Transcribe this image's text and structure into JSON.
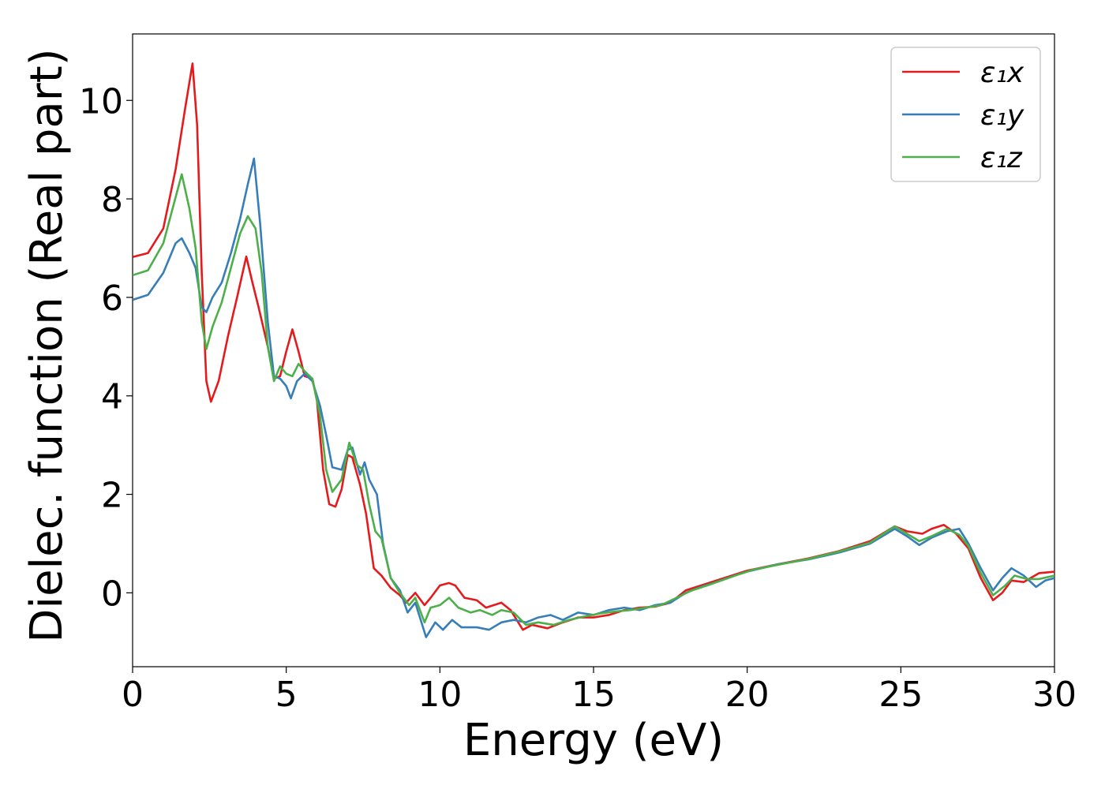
{
  "chart_data": {
    "type": "line",
    "title": "",
    "xlabel": "Energy (eV)",
    "ylabel": "Dielec. function (Real part)",
    "xlim": [
      0,
      30
    ],
    "ylim": [
      -1.5,
      11.35
    ],
    "xticks": [
      0,
      5,
      10,
      15,
      20,
      25,
      30
    ],
    "yticks": [
      0,
      2,
      4,
      6,
      8,
      10
    ],
    "grid": false,
    "legend_position": "top-right",
    "series": [
      {
        "name": "ε₁x",
        "color": "#e41a1c",
        "points": [
          [
            0,
            6.82
          ],
          [
            0.5,
            6.9
          ],
          [
            1.0,
            7.4
          ],
          [
            1.4,
            8.6
          ],
          [
            1.7,
            9.8
          ],
          [
            1.95,
            10.75
          ],
          [
            2.1,
            9.5
          ],
          [
            2.25,
            6.5
          ],
          [
            2.4,
            4.3
          ],
          [
            2.55,
            3.88
          ],
          [
            2.8,
            4.3
          ],
          [
            3.1,
            5.2
          ],
          [
            3.4,
            6.0
          ],
          [
            3.7,
            6.83
          ],
          [
            3.9,
            6.3
          ],
          [
            4.1,
            5.8
          ],
          [
            4.4,
            5.0
          ],
          [
            4.6,
            4.35
          ],
          [
            4.8,
            4.4
          ],
          [
            5.0,
            4.9
          ],
          [
            5.2,
            5.35
          ],
          [
            5.4,
            4.9
          ],
          [
            5.6,
            4.4
          ],
          [
            5.85,
            4.35
          ],
          [
            6.0,
            3.9
          ],
          [
            6.2,
            2.5
          ],
          [
            6.4,
            1.8
          ],
          [
            6.6,
            1.75
          ],
          [
            6.8,
            2.1
          ],
          [
            7.0,
            2.8
          ],
          [
            7.15,
            2.75
          ],
          [
            7.4,
            2.2
          ],
          [
            7.6,
            1.6
          ],
          [
            7.85,
            0.5
          ],
          [
            8.1,
            0.35
          ],
          [
            8.4,
            0.1
          ],
          [
            8.7,
            -0.05
          ],
          [
            8.9,
            -0.2
          ],
          [
            9.2,
            0.0
          ],
          [
            9.5,
            -0.25
          ],
          [
            9.7,
            -0.1
          ],
          [
            10.0,
            0.15
          ],
          [
            10.3,
            0.2
          ],
          [
            10.5,
            0.15
          ],
          [
            10.8,
            -0.1
          ],
          [
            11.2,
            -0.15
          ],
          [
            11.5,
            -0.3
          ],
          [
            12.0,
            -0.2
          ],
          [
            12.3,
            -0.35
          ],
          [
            12.7,
            -0.75
          ],
          [
            13.0,
            -0.65
          ],
          [
            13.5,
            -0.72
          ],
          [
            14.0,
            -0.6
          ],
          [
            14.5,
            -0.5
          ],
          [
            15.0,
            -0.5
          ],
          [
            15.5,
            -0.45
          ],
          [
            16.0,
            -0.35
          ],
          [
            16.5,
            -0.3
          ],
          [
            17.0,
            -0.28
          ],
          [
            17.5,
            -0.2
          ],
          [
            18.0,
            0.05
          ],
          [
            18.5,
            0.15
          ],
          [
            19.0,
            0.25
          ],
          [
            19.5,
            0.35
          ],
          [
            20.0,
            0.45
          ],
          [
            21.0,
            0.58
          ],
          [
            22.0,
            0.7
          ],
          [
            23.0,
            0.85
          ],
          [
            24.0,
            1.05
          ],
          [
            24.8,
            1.35
          ],
          [
            25.2,
            1.25
          ],
          [
            25.7,
            1.2
          ],
          [
            26.0,
            1.3
          ],
          [
            26.4,
            1.38
          ],
          [
            26.8,
            1.2
          ],
          [
            27.2,
            0.9
          ],
          [
            27.6,
            0.3
          ],
          [
            28.0,
            -0.15
          ],
          [
            28.3,
            0.0
          ],
          [
            28.6,
            0.25
          ],
          [
            29.0,
            0.22
          ],
          [
            29.5,
            0.4
          ],
          [
            30.0,
            0.43
          ]
        ]
      },
      {
        "name": "ε₁y",
        "color": "#377eb8",
        "points": [
          [
            0,
            5.95
          ],
          [
            0.5,
            6.05
          ],
          [
            1.0,
            6.5
          ],
          [
            1.4,
            7.1
          ],
          [
            1.6,
            7.2
          ],
          [
            1.85,
            6.9
          ],
          [
            2.05,
            6.6
          ],
          [
            2.25,
            5.8
          ],
          [
            2.4,
            5.7
          ],
          [
            2.6,
            6.0
          ],
          [
            2.9,
            6.3
          ],
          [
            3.2,
            6.9
          ],
          [
            3.5,
            7.6
          ],
          [
            3.75,
            8.3
          ],
          [
            3.95,
            8.82
          ],
          [
            4.15,
            7.5
          ],
          [
            4.4,
            5.5
          ],
          [
            4.6,
            4.4
          ],
          [
            4.8,
            4.35
          ],
          [
            5.0,
            4.2
          ],
          [
            5.15,
            3.95
          ],
          [
            5.35,
            4.3
          ],
          [
            5.6,
            4.45
          ],
          [
            5.85,
            4.3
          ],
          [
            6.1,
            3.8
          ],
          [
            6.3,
            3.2
          ],
          [
            6.5,
            2.55
          ],
          [
            6.8,
            2.5
          ],
          [
            7.0,
            2.9
          ],
          [
            7.15,
            2.95
          ],
          [
            7.4,
            2.4
          ],
          [
            7.55,
            2.65
          ],
          [
            7.7,
            2.3
          ],
          [
            7.95,
            2.0
          ],
          [
            8.15,
            1.0
          ],
          [
            8.4,
            0.3
          ],
          [
            8.7,
            0.05
          ],
          [
            8.95,
            -0.4
          ],
          [
            9.2,
            -0.2
          ],
          [
            9.55,
            -0.9
          ],
          [
            9.85,
            -0.6
          ],
          [
            10.1,
            -0.75
          ],
          [
            10.4,
            -0.55
          ],
          [
            10.7,
            -0.7
          ],
          [
            11.2,
            -0.7
          ],
          [
            11.6,
            -0.75
          ],
          [
            12.0,
            -0.6
          ],
          [
            12.4,
            -0.55
          ],
          [
            12.8,
            -0.6
          ],
          [
            13.2,
            -0.5
          ],
          [
            13.6,
            -0.45
          ],
          [
            14.0,
            -0.55
          ],
          [
            14.5,
            -0.4
          ],
          [
            15.0,
            -0.45
          ],
          [
            15.5,
            -0.35
          ],
          [
            16.0,
            -0.3
          ],
          [
            16.5,
            -0.35
          ],
          [
            17.0,
            -0.25
          ],
          [
            17.5,
            -0.2
          ],
          [
            18.0,
            0.0
          ],
          [
            18.5,
            0.12
          ],
          [
            19.0,
            0.22
          ],
          [
            19.5,
            0.33
          ],
          [
            20.0,
            0.43
          ],
          [
            21.0,
            0.58
          ],
          [
            22.0,
            0.68
          ],
          [
            23.0,
            0.82
          ],
          [
            24.0,
            1.0
          ],
          [
            24.8,
            1.3
          ],
          [
            25.2,
            1.15
          ],
          [
            25.6,
            0.97
          ],
          [
            26.0,
            1.12
          ],
          [
            26.5,
            1.25
          ],
          [
            26.9,
            1.3
          ],
          [
            27.2,
            1.0
          ],
          [
            27.6,
            0.5
          ],
          [
            28.0,
            0.05
          ],
          [
            28.3,
            0.3
          ],
          [
            28.6,
            0.5
          ],
          [
            29.0,
            0.35
          ],
          [
            29.4,
            0.12
          ],
          [
            29.7,
            0.25
          ],
          [
            30.0,
            0.3
          ]
        ]
      },
      {
        "name": "ε₁z",
        "color": "#4daf4a",
        "points": [
          [
            0,
            6.45
          ],
          [
            0.5,
            6.55
          ],
          [
            1.0,
            7.1
          ],
          [
            1.3,
            7.8
          ],
          [
            1.6,
            8.5
          ],
          [
            1.85,
            7.8
          ],
          [
            2.05,
            7.0
          ],
          [
            2.25,
            5.5
          ],
          [
            2.4,
            4.95
          ],
          [
            2.6,
            5.4
          ],
          [
            2.9,
            5.9
          ],
          [
            3.2,
            6.6
          ],
          [
            3.5,
            7.3
          ],
          [
            3.75,
            7.65
          ],
          [
            4.0,
            7.4
          ],
          [
            4.2,
            6.5
          ],
          [
            4.4,
            5.0
          ],
          [
            4.6,
            4.3
          ],
          [
            4.8,
            4.6
          ],
          [
            5.0,
            4.45
          ],
          [
            5.2,
            4.4
          ],
          [
            5.4,
            4.65
          ],
          [
            5.6,
            4.5
          ],
          [
            5.85,
            4.35
          ],
          [
            6.1,
            3.6
          ],
          [
            6.3,
            2.5
          ],
          [
            6.5,
            2.05
          ],
          [
            6.8,
            2.3
          ],
          [
            7.05,
            3.05
          ],
          [
            7.3,
            2.6
          ],
          [
            7.5,
            2.5
          ],
          [
            7.7,
            1.8
          ],
          [
            7.9,
            1.25
          ],
          [
            8.1,
            1.1
          ],
          [
            8.4,
            0.3
          ],
          [
            8.7,
            0.0
          ],
          [
            9.0,
            -0.25
          ],
          [
            9.2,
            -0.1
          ],
          [
            9.5,
            -0.6
          ],
          [
            9.7,
            -0.3
          ],
          [
            10.0,
            -0.25
          ],
          [
            10.3,
            -0.1
          ],
          [
            10.6,
            -0.3
          ],
          [
            11.0,
            -0.4
          ],
          [
            11.3,
            -0.35
          ],
          [
            11.7,
            -0.45
          ],
          [
            12.0,
            -0.35
          ],
          [
            12.4,
            -0.4
          ],
          [
            12.8,
            -0.65
          ],
          [
            13.2,
            -0.6
          ],
          [
            13.7,
            -0.65
          ],
          [
            14.2,
            -0.55
          ],
          [
            14.7,
            -0.48
          ],
          [
            15.2,
            -0.42
          ],
          [
            15.7,
            -0.38
          ],
          [
            16.2,
            -0.35
          ],
          [
            16.7,
            -0.3
          ],
          [
            17.2,
            -0.25
          ],
          [
            17.7,
            -0.1
          ],
          [
            18.2,
            0.05
          ],
          [
            18.7,
            0.15
          ],
          [
            19.2,
            0.26
          ],
          [
            19.7,
            0.37
          ],
          [
            20.2,
            0.47
          ],
          [
            21.0,
            0.57
          ],
          [
            22.0,
            0.69
          ],
          [
            23.0,
            0.84
          ],
          [
            24.0,
            1.02
          ],
          [
            24.8,
            1.35
          ],
          [
            25.2,
            1.2
          ],
          [
            25.6,
            1.05
          ],
          [
            26.0,
            1.15
          ],
          [
            26.5,
            1.3
          ],
          [
            26.9,
            1.18
          ],
          [
            27.2,
            0.95
          ],
          [
            27.6,
            0.4
          ],
          [
            28.0,
            -0.05
          ],
          [
            28.4,
            0.15
          ],
          [
            28.7,
            0.35
          ],
          [
            29.1,
            0.28
          ],
          [
            29.5,
            0.28
          ],
          [
            30.0,
            0.35
          ]
        ]
      }
    ]
  }
}
